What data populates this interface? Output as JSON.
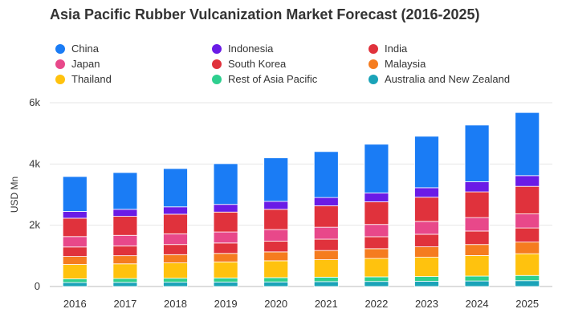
{
  "chart_data": {
    "type": "bar",
    "stacked": true,
    "title": "Asia Pacific Rubber Vulcanization Market Forecast (2016-2025)",
    "xlabel": "",
    "ylabel": "USD Mn",
    "ylim": [
      0,
      6000
    ],
    "y_ticks": [
      0,
      2000,
      4000,
      6000
    ],
    "y_tick_labels": [
      "0",
      "2k",
      "4k",
      "6k"
    ],
    "grid": true,
    "legend_position": "top",
    "categories": [
      "2016",
      "2017",
      "2018",
      "2019",
      "2020",
      "2021",
      "2022",
      "2023",
      "2024",
      "2025"
    ],
    "series": [
      {
        "name": "Australia and New Zealand",
        "color": "#1aa3b8",
        "values": [
          130,
          135,
          140,
          145,
          150,
          160,
          165,
          170,
          180,
          190
        ]
      },
      {
        "name": "Rest of Asia Pacific",
        "color": "#2ecf8f",
        "values": [
          120,
          125,
          130,
          135,
          140,
          145,
          150,
          155,
          160,
          170
        ]
      },
      {
        "name": "Thailand",
        "color": "#ffc20e",
        "values": [
          470,
          480,
          500,
          520,
          550,
          570,
          600,
          630,
          670,
          710
        ]
      },
      {
        "name": "Malaysia",
        "color": "#f57c1f",
        "values": [
          260,
          265,
          270,
          280,
          290,
          300,
          320,
          340,
          360,
          380
        ]
      },
      {
        "name": "South Korea",
        "color": "#e0323c",
        "values": [
          310,
          320,
          330,
          340,
          350,
          370,
          390,
          410,
          440,
          460
        ]
      },
      {
        "name": "Japan",
        "color": "#e8488a",
        "values": [
          340,
          345,
          350,
          360,
          380,
          390,
          400,
          420,
          440,
          460
        ]
      },
      {
        "name": "India",
        "color": "#e0323c",
        "values": [
          600,
          620,
          640,
          650,
          660,
          700,
          740,
          790,
          840,
          900
        ]
      },
      {
        "name": "Indonesia",
        "color": "#6a1be6",
        "values": [
          220,
          230,
          240,
          250,
          260,
          270,
          290,
          310,
          330,
          350
        ]
      },
      {
        "name": "China",
        "color": "#1a7cf5",
        "values": [
          1140,
          1200,
          1250,
          1330,
          1420,
          1500,
          1590,
          1680,
          1850,
          2060
        ]
      }
    ]
  },
  "legend": [
    {
      "name": "China",
      "color": "#1a7cf5"
    },
    {
      "name": "Indonesia",
      "color": "#6a1be6"
    },
    {
      "name": "India",
      "color": "#e0323c"
    },
    {
      "name": "Japan",
      "color": "#e8488a"
    },
    {
      "name": "South Korea",
      "color": "#e0323c"
    },
    {
      "name": "Malaysia",
      "color": "#f57c1f"
    },
    {
      "name": "Thailand",
      "color": "#ffc20e"
    },
    {
      "name": "Rest of Asia Pacific",
      "color": "#2ecf8f"
    },
    {
      "name": "Australia and New Zealand",
      "color": "#1aa3b8"
    }
  ]
}
